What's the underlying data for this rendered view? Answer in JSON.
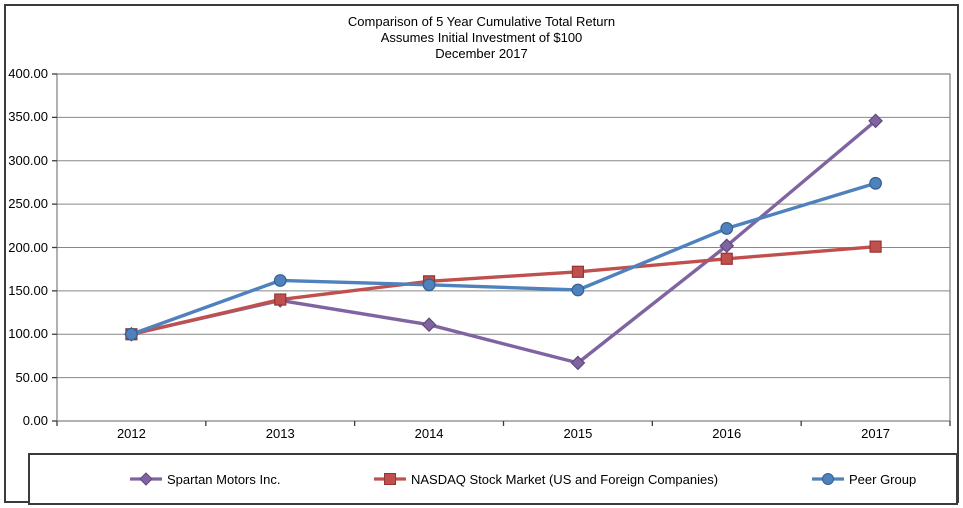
{
  "title": {
    "line1": "Comparison of 5 Year Cumulative Total Return",
    "line2": "Assumes Initial Investment of $100",
    "line3": "December 2017"
  },
  "chart_data": {
    "type": "line",
    "categories": [
      "2012",
      "2013",
      "2014",
      "2015",
      "2016",
      "2017"
    ],
    "series": [
      {
        "name": "Spartan Motors Inc.",
        "color": "#8064A2",
        "edge_color": "#5F497A",
        "marker": "diamond",
        "values": [
          100,
          139,
          111,
          67,
          202,
          346
        ]
      },
      {
        "name": "NASDAQ Stock Market (US and Foreign Companies)",
        "color": "#C0504D",
        "edge_color": "#943634",
        "marker": "square",
        "values": [
          100,
          140,
          161,
          172,
          187,
          201
        ]
      },
      {
        "name": "Peer Group",
        "color": "#4F81BD",
        "edge_color": "#36618F",
        "marker": "circle",
        "values": [
          100,
          162,
          157,
          151,
          222,
          274
        ]
      }
    ],
    "ylim": [
      0,
      400
    ],
    "ytick_step": 50,
    "ytick_labels": [
      "0.00",
      "50.00",
      "100.00",
      "150.00",
      "200.00",
      "250.00",
      "300.00",
      "350.00",
      "400.00"
    ],
    "grid": true,
    "gridline_color": "#878787",
    "plot_border_color": "#878787",
    "tick_color": "#3b3b3b",
    "legend_position": "bottom"
  }
}
